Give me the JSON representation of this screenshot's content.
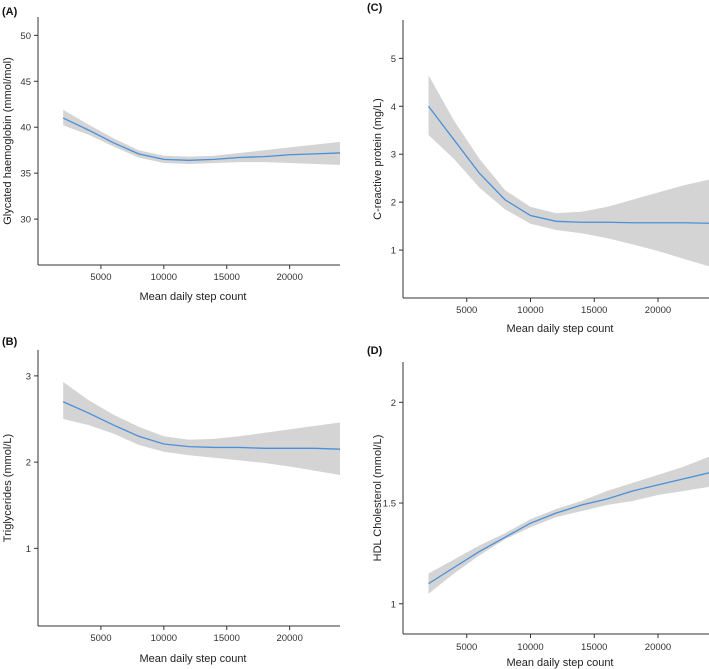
{
  "chart_data": [
    {
      "id": "A",
      "type": "line",
      "panel_label": "(A)",
      "xlabel": "Mean daily step count",
      "ylabel": "Glycated haemoglobin (mmol/mol)",
      "xlim": [
        0,
        24000
      ],
      "ylim": [
        25,
        52
      ],
      "x_ticks": [
        5000,
        10000,
        15000,
        20000
      ],
      "y_ticks": [
        30,
        35,
        40,
        45,
        50
      ],
      "series": [
        {
          "x": [
            2000,
            4000,
            6000,
            8000,
            10000,
            12000,
            14000,
            16000,
            18000,
            20000,
            22000,
            24000
          ],
          "y": [
            41.0,
            39.7,
            38.3,
            37.1,
            36.5,
            36.4,
            36.5,
            36.7,
            36.8,
            37.0,
            37.1,
            37.2
          ],
          "lower": [
            40.2,
            39.2,
            37.9,
            36.7,
            36.1,
            36.0,
            36.1,
            36.2,
            36.2,
            36.1,
            36.0,
            35.9
          ],
          "upper": [
            41.9,
            40.3,
            38.8,
            37.5,
            36.9,
            36.8,
            36.9,
            37.2,
            37.5,
            37.8,
            38.1,
            38.4
          ]
        }
      ]
    },
    {
      "id": "B",
      "type": "line",
      "panel_label": "(B)",
      "xlabel": "Mean daily step count",
      "ylabel": "Triglycerides (mmol/L)",
      "xlim": [
        0,
        24000
      ],
      "ylim": [
        0.1,
        3.3
      ],
      "x_ticks": [
        5000,
        10000,
        15000,
        20000
      ],
      "y_ticks": [
        1,
        2,
        3
      ],
      "series": [
        {
          "x": [
            2000,
            4000,
            6000,
            8000,
            10000,
            12000,
            14000,
            16000,
            18000,
            20000,
            22000,
            24000
          ],
          "y": [
            2.7,
            2.57,
            2.43,
            2.3,
            2.21,
            2.18,
            2.17,
            2.17,
            2.16,
            2.16,
            2.16,
            2.15
          ],
          "lower": [
            2.5,
            2.43,
            2.33,
            2.2,
            2.12,
            2.08,
            2.05,
            2.02,
            1.99,
            1.95,
            1.9,
            1.85
          ],
          "upper": [
            2.93,
            2.72,
            2.55,
            2.41,
            2.3,
            2.26,
            2.27,
            2.3,
            2.34,
            2.38,
            2.42,
            2.46
          ]
        }
      ]
    },
    {
      "id": "C",
      "type": "line",
      "panel_label": "(C)",
      "xlabel": "Mean daily step count",
      "ylabel": "C-reactive protein (mg/L)",
      "xlim": [
        0,
        24000
      ],
      "ylim": [
        0,
        5.8
      ],
      "x_ticks": [
        5000,
        10000,
        15000,
        20000
      ],
      "y_ticks": [
        1,
        2,
        3,
        4,
        5
      ],
      "series": [
        {
          "x": [
            2000,
            4000,
            6000,
            8000,
            10000,
            12000,
            14000,
            16000,
            18000,
            20000,
            22000,
            24000
          ],
          "y": [
            4.0,
            3.3,
            2.6,
            2.05,
            1.72,
            1.6,
            1.58,
            1.58,
            1.57,
            1.57,
            1.57,
            1.56
          ],
          "lower": [
            3.4,
            2.9,
            2.3,
            1.85,
            1.55,
            1.42,
            1.35,
            1.25,
            1.12,
            0.98,
            0.82,
            0.66
          ],
          "upper": [
            4.65,
            3.7,
            2.9,
            2.25,
            1.9,
            1.77,
            1.8,
            1.9,
            2.05,
            2.2,
            2.35,
            2.47
          ]
        }
      ]
    },
    {
      "id": "D",
      "type": "line",
      "panel_label": "(D)",
      "xlabel": "Mean daily step count",
      "ylabel": "HDL Cholesterol (mmol/L)",
      "xlim": [
        0,
        24000
      ],
      "ylim": [
        0.85,
        2.2
      ],
      "x_ticks": [
        5000,
        10000,
        15000,
        20000
      ],
      "y_ticks": [
        1.0,
        1.5,
        2.0
      ],
      "series": [
        {
          "x": [
            2000,
            4000,
            6000,
            8000,
            10000,
            12000,
            14000,
            16000,
            18000,
            20000,
            22000,
            24000
          ],
          "y": [
            1.1,
            1.18,
            1.26,
            1.33,
            1.4,
            1.45,
            1.49,
            1.52,
            1.56,
            1.59,
            1.62,
            1.65
          ],
          "lower": [
            1.05,
            1.15,
            1.24,
            1.32,
            1.38,
            1.43,
            1.46,
            1.49,
            1.51,
            1.54,
            1.56,
            1.58
          ],
          "upper": [
            1.15,
            1.22,
            1.29,
            1.35,
            1.42,
            1.47,
            1.51,
            1.56,
            1.6,
            1.64,
            1.68,
            1.73
          ]
        }
      ]
    }
  ]
}
